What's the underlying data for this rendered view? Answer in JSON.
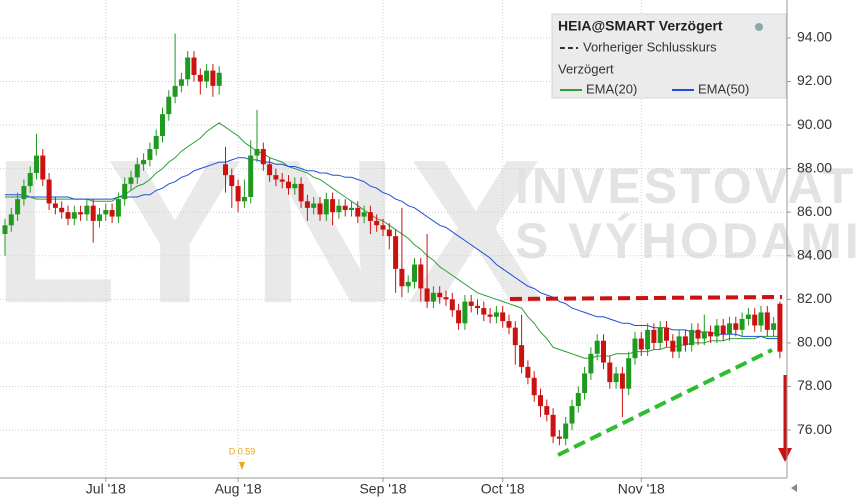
{
  "chart_data": {
    "type": "candlestick",
    "watermark": [
      "LYNX",
      "INVESTOVAT",
      "S VÝHODAMI"
    ],
    "instrument": "HEIA@SMART Verzögert",
    "prev_close_label": "Vorheriger Schlusskurs",
    "delay_label": "Verzögert",
    "dividend_label": "D 0.59",
    "categories": [
      null,
      null,
      null,
      null,
      null,
      null,
      null,
      null,
      null,
      null,
      null,
      null,
      null,
      null,
      null,
      null,
      "Jul '18",
      null,
      null,
      null,
      null,
      null,
      null,
      null,
      null,
      null,
      null,
      null,
      null,
      null,
      null,
      null,
      null,
      null,
      null,
      null,
      null,
      "Aug '18",
      null,
      null,
      null,
      null,
      null,
      null,
      null,
      null,
      null,
      null,
      null,
      null,
      null,
      null,
      null,
      null,
      null,
      null,
      null,
      null,
      null,
      null,
      "Sep '18",
      null,
      null,
      null,
      null,
      null,
      null,
      null,
      null,
      null,
      null,
      null,
      null,
      null,
      null,
      null,
      null,
      null,
      null,
      "Oct '18",
      null,
      null,
      null,
      null,
      null,
      null,
      null,
      null,
      null,
      null,
      null,
      null,
      null,
      null,
      null,
      null,
      null,
      null,
      null,
      null,
      null,
      "Nov '18",
      null,
      null,
      null,
      null,
      null,
      null,
      null,
      null,
      null,
      null,
      null,
      null,
      null,
      null,
      null,
      null,
      null,
      null,
      null,
      null,
      null,
      null
    ],
    "open": [
      85.0,
      85.4,
      85.9,
      86.6,
      87.2,
      87.8,
      88.6,
      87.5,
      86.4,
      86.2,
      86.0,
      85.7,
      86.0,
      85.9,
      86.3,
      85.6,
      85.9,
      86.1,
      85.8,
      86.6,
      87.3,
      87.6,
      88.2,
      88.4,
      88.9,
      89.5,
      90.5,
      91.3,
      91.8,
      92.1,
      93.1,
      92.3,
      92.0,
      92.5,
      91.8,
      88.2,
      87.7,
      87.2,
      86.5,
      86.7,
      88.6,
      88.9,
      88.2,
      87.7,
      87.5,
      87.4,
      87.1,
      87.3,
      86.5,
      86.2,
      86.4,
      85.9,
      86.6,
      86.0,
      86.3,
      86.1,
      86.2,
      85.8,
      86.0,
      85.6,
      85.4,
      85.2,
      84.9,
      83.4,
      82.6,
      82.8,
      83.6,
      82.5,
      81.9,
      82.3,
      82.1,
      82.0,
      81.5,
      80.9,
      81.9,
      81.7,
      81.6,
      81.3,
      81.2,
      81.4,
      81.0,
      80.7,
      79.9,
      78.9,
      78.4,
      77.6,
      77.1,
      76.7,
      75.7,
      75.6,
      76.3,
      77.1,
      77.7,
      78.6,
      79.5,
      80.1,
      79.1,
      78.2,
      78.6,
      77.9,
      79.3,
      80.2,
      79.7,
      80.6,
      80.0,
      80.7,
      80.1,
      79.6,
      80.3,
      79.9,
      80.6,
      80.2,
      80.5,
      80.3,
      80.8,
      80.4,
      80.9,
      80.6,
      81.1,
      81.3,
      80.8,
      81.4,
      80.6,
      81.8
    ],
    "high": [
      85.7,
      86.2,
      86.9,
      87.5,
      88.1,
      89.6,
      88.9,
      87.8,
      86.7,
      86.5,
      86.3,
      86.3,
      86.3,
      86.6,
      86.6,
      86.2,
      86.4,
      86.4,
      86.9,
      87.6,
      87.9,
      88.5,
      88.7,
      89.2,
      89.8,
      90.8,
      91.6,
      94.2,
      92.4,
      93.4,
      93.4,
      92.6,
      92.8,
      92.8,
      92.7,
      89.0,
      88.0,
      87.5,
      87.5,
      89.3,
      90.7,
      89.2,
      88.5,
      88.0,
      87.8,
      87.7,
      87.6,
      87.6,
      86.8,
      86.7,
      86.7,
      86.9,
      86.9,
      86.6,
      86.6,
      86.5,
      86.5,
      86.3,
      86.3,
      85.9,
      85.7,
      85.5,
      85.2,
      86.2,
      83.1,
      83.9,
      83.9,
      85.0,
      82.6,
      82.6,
      82.4,
      82.3,
      81.8,
      82.2,
      82.2,
      82.0,
      81.9,
      81.6,
      81.7,
      81.7,
      81.3,
      81.0,
      81.3,
      79.2,
      78.7,
      77.9,
      77.4,
      77.0,
      76.0,
      76.6,
      77.4,
      78.0,
      78.9,
      79.8,
      80.4,
      80.4,
      79.4,
      78.9,
      78.9,
      79.6,
      80.5,
      80.5,
      80.9,
      80.9,
      81.0,
      81.0,
      80.4,
      80.6,
      80.6,
      80.9,
      80.9,
      81.3,
      80.8,
      81.1,
      81.1,
      81.2,
      81.2,
      81.4,
      81.6,
      81.6,
      81.7,
      81.7,
      81.2,
      81.9
    ],
    "low": [
      84.0,
      85.1,
      85.6,
      86.3,
      86.9,
      87.5,
      87.2,
      86.1,
      85.9,
      85.7,
      85.4,
      85.4,
      85.6,
      85.6,
      84.6,
      85.3,
      85.6,
      85.5,
      85.5,
      86.3,
      87.0,
      87.3,
      87.9,
      88.1,
      88.6,
      89.2,
      90.2,
      91.0,
      91.5,
      91.8,
      92.0,
      91.4,
      91.7,
      91.3,
      91.4,
      86.9,
      86.2,
      86.0,
      86.2,
      86.4,
      88.3,
      87.9,
      87.4,
      87.2,
      87.1,
      86.8,
      86.8,
      86.2,
      85.6,
      85.9,
      85.6,
      85.6,
      85.4,
      85.7,
      85.8,
      85.8,
      85.5,
      85.5,
      85.0,
      85.1,
      84.9,
      84.3,
      82.3,
      82.1,
      82.3,
      82.5,
      81.9,
      81.6,
      81.6,
      81.8,
      81.7,
      81.2,
      80.6,
      80.6,
      81.4,
      81.3,
      81.0,
      80.9,
      80.9,
      80.7,
      80.4,
      79.0,
      78.6,
      78.1,
      77.3,
      76.6,
      76.4,
      75.4,
      75.3,
      75.3,
      76.0,
      76.8,
      77.4,
      78.3,
      79.2,
      78.8,
      77.9,
      77.9,
      76.6,
      77.6,
      79.0,
      79.4,
      79.4,
      79.7,
      79.7,
      79.8,
      79.3,
      79.3,
      79.6,
      79.6,
      79.9,
      79.9,
      80.0,
      80.0,
      80.1,
      80.1,
      80.3,
      80.3,
      80.8,
      80.5,
      80.5,
      80.3,
      80.3,
      79.3
    ],
    "close": [
      85.4,
      85.9,
      86.6,
      87.2,
      87.8,
      88.6,
      87.5,
      86.4,
      86.2,
      86.0,
      85.7,
      86.0,
      85.9,
      86.3,
      85.6,
      85.9,
      86.1,
      85.8,
      86.6,
      87.3,
      87.6,
      88.2,
      88.4,
      88.9,
      89.5,
      90.5,
      91.3,
      91.8,
      92.1,
      93.1,
      92.3,
      92.0,
      92.5,
      91.8,
      92.4,
      87.7,
      87.2,
      86.5,
      86.7,
      88.6,
      88.9,
      88.2,
      87.7,
      87.5,
      87.4,
      87.1,
      87.3,
      86.5,
      86.2,
      86.4,
      85.9,
      86.6,
      86.0,
      86.3,
      86.1,
      86.2,
      85.8,
      86.0,
      85.6,
      85.4,
      85.2,
      84.9,
      83.4,
      82.6,
      82.8,
      83.6,
      82.5,
      81.9,
      82.3,
      82.1,
      82.0,
      81.5,
      80.9,
      81.9,
      81.7,
      81.6,
      81.3,
      81.2,
      81.4,
      81.0,
      80.7,
      79.9,
      78.9,
      78.4,
      77.6,
      77.1,
      76.7,
      75.7,
      75.6,
      76.3,
      77.1,
      77.7,
      78.6,
      79.5,
      80.1,
      79.1,
      78.2,
      78.6,
      77.9,
      79.3,
      80.2,
      79.7,
      80.6,
      80.0,
      80.7,
      80.1,
      79.6,
      80.3,
      79.9,
      80.6,
      80.2,
      80.5,
      80.3,
      80.8,
      80.4,
      80.9,
      80.6,
      81.1,
      81.3,
      80.8,
      81.4,
      80.6,
      80.9,
      79.6
    ],
    "up_color": "#1f9a1f",
    "down_color": "#cc1111",
    "series": [
      {
        "name": "EMA(20)",
        "color": "#2e9e3a",
        "values": [
          86.7,
          86.7,
          86.7,
          86.7,
          86.7,
          86.6,
          86.6,
          86.6,
          86.6,
          86.6,
          86.6,
          86.6,
          86.6,
          86.6,
          86.5,
          86.5,
          86.5,
          86.5,
          86.7,
          86.8,
          87.0,
          87.2,
          87.3,
          87.5,
          87.8,
          88.0,
          88.3,
          88.5,
          88.8,
          89.0,
          89.2,
          89.4,
          89.7,
          89.9,
          90.1,
          89.9,
          89.7,
          89.5,
          89.2,
          89.0,
          88.8,
          88.7,
          88.5,
          88.4,
          88.3,
          88.1,
          88.0,
          87.9,
          87.8,
          87.6,
          87.5,
          87.3,
          87.1,
          86.9,
          86.7,
          86.5,
          86.3,
          86.1,
          85.9,
          85.7,
          85.6,
          85.4,
          85.2,
          85.0,
          84.8,
          84.5,
          84.3,
          84.0,
          83.8,
          83.5,
          83.3,
          83.1,
          82.9,
          82.7,
          82.5,
          82.3,
          82.2,
          82.1,
          82.0,
          81.9,
          81.8,
          81.7,
          81.6,
          81.2,
          80.9,
          80.5,
          80.2,
          79.8,
          79.7,
          79.6,
          79.5,
          79.4,
          79.3,
          79.3,
          79.4,
          79.4,
          79.4,
          79.5,
          79.5,
          79.5,
          79.6,
          79.6,
          79.6,
          79.7,
          79.7,
          79.8,
          79.8,
          79.9,
          79.9,
          80.0,
          80.0,
          80.0,
          80.1,
          80.1,
          80.1,
          80.2,
          80.2,
          80.2,
          80.2,
          80.2,
          80.3,
          80.3,
          80.3,
          80.3
        ]
      },
      {
        "name": "EMA(50)",
        "color": "#1f4fd6",
        "values": [
          86.8,
          86.8,
          86.8,
          86.8,
          86.7,
          86.7,
          86.7,
          86.7,
          86.7,
          86.7,
          86.7,
          86.6,
          86.6,
          86.6,
          86.6,
          86.6,
          86.6,
          86.6,
          86.7,
          86.7,
          86.7,
          86.7,
          86.8,
          86.8,
          87.0,
          87.1,
          87.3,
          87.4,
          87.6,
          87.7,
          87.9,
          88.0,
          88.1,
          88.2,
          88.3,
          88.3,
          88.4,
          88.5,
          88.5,
          88.4,
          88.4,
          88.3,
          88.3,
          88.2,
          88.2,
          88.1,
          88.1,
          88.0,
          87.9,
          87.9,
          87.8,
          87.8,
          87.7,
          87.7,
          87.6,
          87.6,
          87.5,
          87.4,
          87.2,
          87.1,
          86.9,
          86.8,
          86.6,
          86.5,
          86.3,
          86.2,
          86.0,
          85.8,
          85.6,
          85.4,
          85.3,
          85.1,
          84.9,
          84.7,
          84.5,
          84.3,
          84.1,
          83.9,
          83.6,
          83.4,
          83.2,
          83.0,
          82.8,
          82.6,
          82.5,
          82.3,
          82.2,
          82.1,
          81.9,
          81.8,
          81.6,
          81.5,
          81.4,
          81.3,
          81.2,
          81.2,
          81.1,
          81.0,
          80.9,
          80.9,
          80.8,
          80.8,
          80.8,
          80.7,
          80.7,
          80.7,
          80.6,
          80.6,
          80.6,
          80.5,
          80.5,
          80.5,
          80.5,
          80.4,
          80.4,
          80.4,
          80.4,
          80.3,
          80.3,
          80.3,
          80.3,
          80.2,
          80.2,
          80.2
        ]
      }
    ],
    "ylim": [
      73.8,
      95.74
    ],
    "yticks": [
      {
        "value": 76,
        "label": "76.00"
      },
      {
        "value": 78,
        "label": "78.00"
      },
      {
        "value": 80,
        "label": "80.00"
      },
      {
        "value": 82,
        "label": "82.00"
      },
      {
        "value": 84,
        "label": "84.00"
      },
      {
        "value": 86,
        "label": "86.00"
      },
      {
        "value": 88,
        "label": "88.00"
      },
      {
        "value": 90,
        "label": "90.00"
      },
      {
        "value": 92,
        "label": "92.00"
      },
      {
        "value": 94,
        "label": "94.00"
      }
    ],
    "grid": true
  }
}
